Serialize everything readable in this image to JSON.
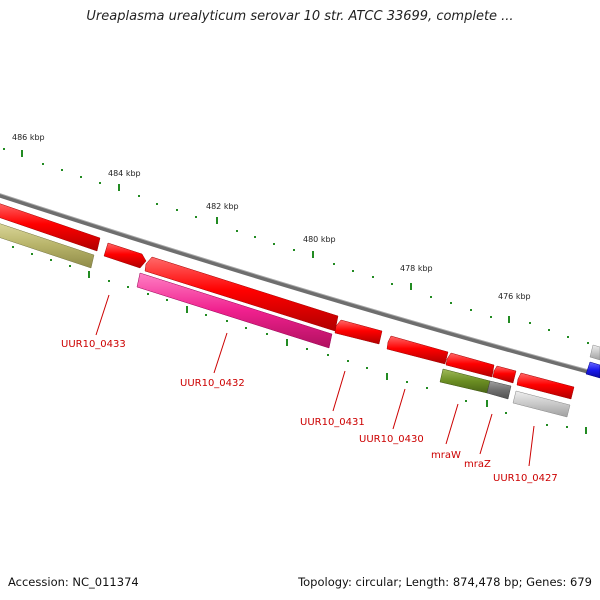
{
  "title": "Ureaplasma urealyticum serovar 10 str. ATCC 33699, complete ...",
  "footer": {
    "accession": "Accession: NC_011374",
    "summary": "Topology: circular; Length: 874,478 bp; Genes: 679"
  },
  "colors": {
    "backbone": "#888888",
    "gene_forward": "#ee0000",
    "gene_pink": "#ee1a8c",
    "gene_olive": "#b9b56a",
    "gene_green": "#6b8e23",
    "gene_gray": "#777777",
    "gene_lightgray": "#c8c8c8",
    "gene_blue": "#1a1aee",
    "tick": "#228b22",
    "label": "#cc0000"
  },
  "scale_labels": [
    "486 kbp",
    "484 kbp",
    "482 kbp",
    "480 kbp",
    "478 kbp",
    "476 kbp"
  ],
  "gene_labels": [
    "UUR10_0433",
    "UUR10_0432",
    "UUR10_0431",
    "UUR10_0430",
    "mraW",
    "mraZ",
    "UUR10_0427"
  ]
}
